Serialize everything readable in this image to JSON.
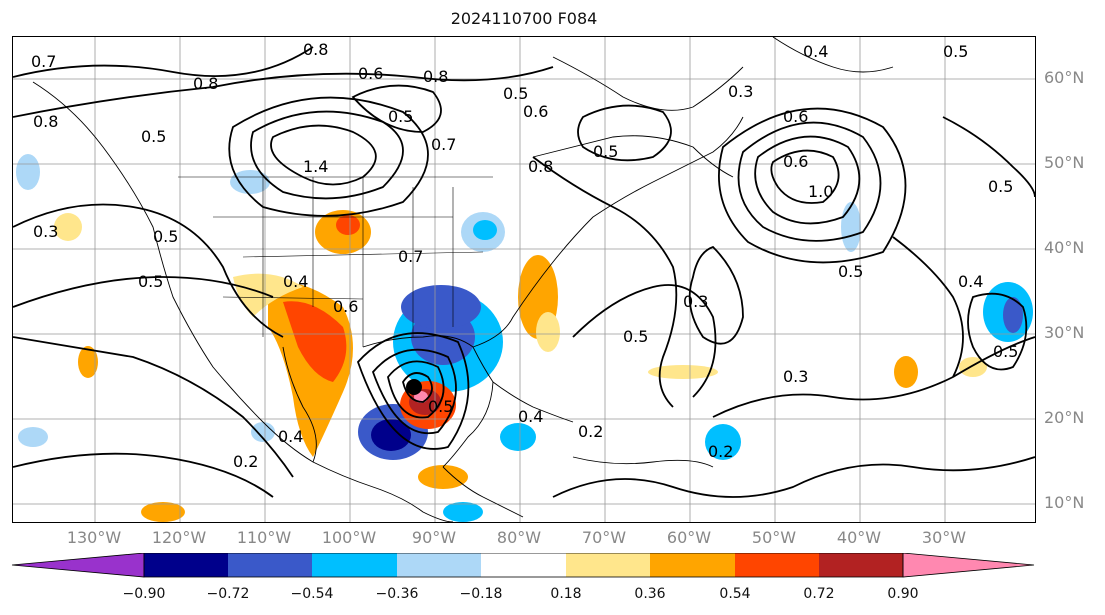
{
  "title": "2024110700 F084",
  "lat_labels": [
    "60°N",
    "50°N",
    "40°N",
    "30°N",
    "20°N",
    "10°N"
  ],
  "lon_labels": [
    "130°W",
    "120°W",
    "110°W",
    "100°W",
    "90°W",
    "80°W",
    "70°W",
    "60°W",
    "50°W",
    "40°W",
    "30°W"
  ],
  "colorbar": {
    "colors": [
      "#9932cc",
      "#00008b",
      "#3a59c9",
      "#00bfff",
      "#add8f7",
      "#ffffff",
      "#ffe68c",
      "#ffa500",
      "#ff4500",
      "#b22222",
      "#ff88b0"
    ],
    "labels": [
      "−0.90",
      "−0.72",
      "−0.54",
      "−0.36",
      "−0.18",
      "0.18",
      "0.36",
      "0.54",
      "0.72",
      "0.90"
    ]
  },
  "contour_labels": [
    "0.7",
    "0.8",
    "0.6",
    "0.8",
    "0.8",
    "0.5",
    "0.5",
    "0.6",
    "0.7",
    "1.4",
    "0.5",
    "0.8",
    "0.4",
    "0.7",
    "0.6",
    "0.5",
    "0.8",
    "0.6",
    "1.0",
    "0.5",
    "0.3",
    "0.5",
    "0.5",
    "0.6",
    "0.4",
    "0.3",
    "0.5",
    "0.3",
    "0.5",
    "0.4",
    "0.5",
    "0.4",
    "0.2",
    "0.3",
    "0.2",
    "0.4",
    "0.2",
    "0.5",
    "0.5"
  ]
}
